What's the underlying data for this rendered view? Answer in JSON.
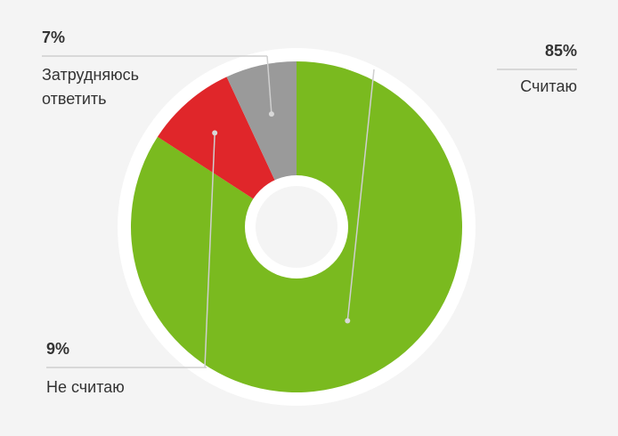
{
  "chart_data": {
    "type": "donut",
    "categories": [
      "Считаю",
      "Не считаю",
      "Затрудняюсь ответить"
    ],
    "values": [
      85,
      9,
      7
    ],
    "value_labels": [
      "85%",
      "9%",
      "7%"
    ],
    "colors": [
      "#7aba1f",
      "#e0262a",
      "#9a9a9a"
    ]
  }
}
